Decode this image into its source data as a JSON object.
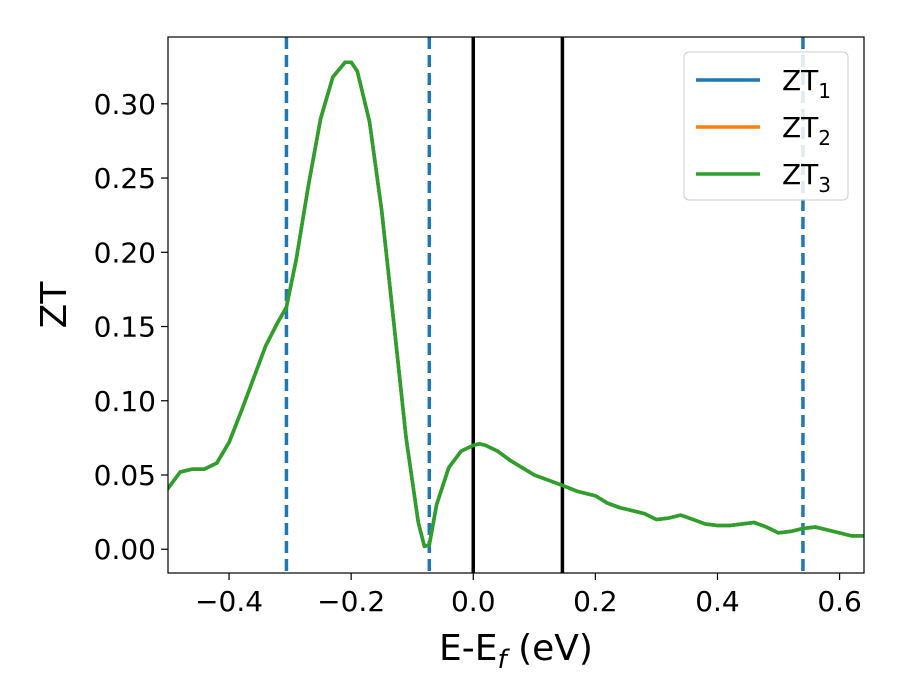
{
  "chart_data": {
    "type": "line",
    "title": "",
    "xlabel_main": "E-E",
    "xlabel_sub": "f",
    "xlabel_unit": " (eV)",
    "ylabel": "ZT",
    "xlim": [
      -0.5,
      0.64
    ],
    "ylim": [
      -0.016,
      0.345
    ],
    "grid": false,
    "legend_position": "top-right",
    "x_ticks": [
      -0.4,
      -0.2,
      0.0,
      0.2,
      0.4,
      0.6
    ],
    "x_tick_labels": [
      "−0.4",
      "−0.2",
      "0.0",
      "0.2",
      "0.4",
      "0.6"
    ],
    "y_ticks": [
      0.0,
      0.05,
      0.1,
      0.15,
      0.2,
      0.25,
      0.3
    ],
    "y_tick_labels": [
      "0.00",
      "0.05",
      "0.10",
      "0.15",
      "0.20",
      "0.25",
      "0.30"
    ],
    "vertical_lines": [
      {
        "x": -0.306,
        "style": "dashed",
        "color": "#1f77b4"
      },
      {
        "x": -0.072,
        "style": "dashed",
        "color": "#1f77b4"
      },
      {
        "x": 0.0,
        "style": "solid",
        "color": "#000000"
      },
      {
        "x": 0.146,
        "style": "solid",
        "color": "#000000"
      },
      {
        "x": 0.54,
        "style": "dashed",
        "color": "#1f77b4"
      }
    ],
    "x": [
      -0.5,
      -0.48,
      -0.46,
      -0.44,
      -0.42,
      -0.4,
      -0.38,
      -0.36,
      -0.34,
      -0.32,
      -0.306,
      -0.29,
      -0.27,
      -0.25,
      -0.23,
      -0.21,
      -0.2,
      -0.19,
      -0.17,
      -0.15,
      -0.13,
      -0.11,
      -0.09,
      -0.08,
      -0.072,
      -0.06,
      -0.04,
      -0.02,
      0.0,
      0.01,
      0.02,
      0.04,
      0.06,
      0.08,
      0.1,
      0.12,
      0.146,
      0.17,
      0.2,
      0.22,
      0.24,
      0.26,
      0.28,
      0.3,
      0.32,
      0.34,
      0.36,
      0.38,
      0.4,
      0.42,
      0.44,
      0.46,
      0.48,
      0.5,
      0.52,
      0.54,
      0.56,
      0.58,
      0.6,
      0.62,
      0.64
    ],
    "series": [
      {
        "name": "ZT₁",
        "label_main": "ZT",
        "label_sub": "1",
        "color": "#1f77b4",
        "values": [
          0.041,
          0.052,
          0.054,
          0.054,
          0.058,
          0.072,
          0.093,
          0.115,
          0.137,
          0.153,
          0.163,
          0.195,
          0.245,
          0.29,
          0.318,
          0.328,
          0.328,
          0.322,
          0.288,
          0.228,
          0.152,
          0.075,
          0.018,
          0.002,
          0.003,
          0.03,
          0.055,
          0.066,
          0.07,
          0.071,
          0.07,
          0.066,
          0.06,
          0.055,
          0.05,
          0.047,
          0.043,
          0.039,
          0.036,
          0.031,
          0.028,
          0.026,
          0.024,
          0.02,
          0.021,
          0.023,
          0.02,
          0.017,
          0.016,
          0.016,
          0.017,
          0.018,
          0.015,
          0.011,
          0.012,
          0.014,
          0.015,
          0.013,
          0.011,
          0.009,
          0.009
        ]
      },
      {
        "name": "ZT₂",
        "label_main": "ZT",
        "label_sub": "2",
        "color": "#ff7f0e",
        "values": [
          0.041,
          0.052,
          0.054,
          0.054,
          0.058,
          0.072,
          0.093,
          0.115,
          0.137,
          0.153,
          0.163,
          0.195,
          0.245,
          0.29,
          0.318,
          0.328,
          0.328,
          0.322,
          0.288,
          0.228,
          0.152,
          0.075,
          0.018,
          0.002,
          0.003,
          0.03,
          0.055,
          0.066,
          0.07,
          0.071,
          0.07,
          0.066,
          0.06,
          0.055,
          0.05,
          0.047,
          0.043,
          0.039,
          0.036,
          0.031,
          0.028,
          0.026,
          0.024,
          0.02,
          0.021,
          0.023,
          0.02,
          0.017,
          0.016,
          0.016,
          0.017,
          0.018,
          0.015,
          0.011,
          0.012,
          0.014,
          0.015,
          0.013,
          0.011,
          0.009,
          0.009
        ]
      },
      {
        "name": "ZT₃",
        "label_main": "ZT",
        "label_sub": "3",
        "color": "#2ca02c",
        "values": [
          0.041,
          0.052,
          0.054,
          0.054,
          0.058,
          0.072,
          0.093,
          0.115,
          0.137,
          0.153,
          0.163,
          0.195,
          0.245,
          0.29,
          0.318,
          0.328,
          0.328,
          0.322,
          0.288,
          0.228,
          0.152,
          0.075,
          0.018,
          0.002,
          0.003,
          0.03,
          0.055,
          0.066,
          0.07,
          0.071,
          0.07,
          0.066,
          0.06,
          0.055,
          0.05,
          0.047,
          0.043,
          0.039,
          0.036,
          0.031,
          0.028,
          0.026,
          0.024,
          0.02,
          0.021,
          0.023,
          0.02,
          0.017,
          0.016,
          0.016,
          0.017,
          0.018,
          0.015,
          0.011,
          0.012,
          0.014,
          0.015,
          0.013,
          0.011,
          0.009,
          0.009
        ]
      }
    ]
  }
}
